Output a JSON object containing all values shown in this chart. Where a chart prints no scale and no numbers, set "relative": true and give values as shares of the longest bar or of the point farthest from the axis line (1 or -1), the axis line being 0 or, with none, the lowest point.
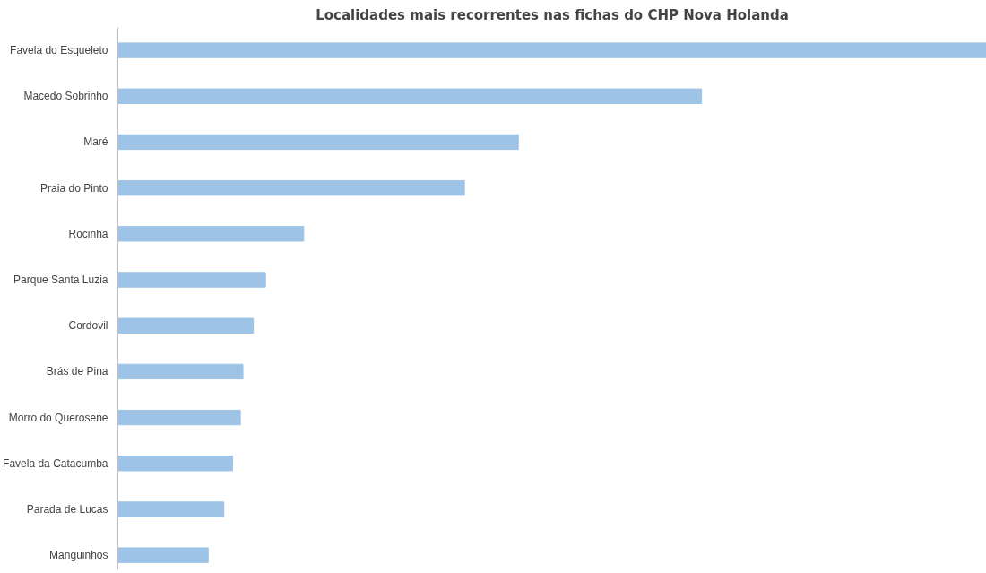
{
  "chart_data": {
    "type": "bar",
    "orientation": "horizontal",
    "relative": true,
    "title": "Localidades mais recorrentes nas fichas do CHP Nova Holanda",
    "categories": [
      "Favela do Esqueleto",
      "Macedo Sobrinho",
      "Maré",
      "Praia do Pinto",
      "Rocinha",
      "Parque Santa Luzia",
      "Cordovil",
      "Brás de Pina",
      "Morro do Querosene",
      "Favela da Catacumba",
      "Parada de Lucas",
      "Manguinhos"
    ],
    "values": [
      1,
      0.672,
      0.461,
      0.399,
      0.214,
      0.17,
      0.156,
      0.144,
      0.141,
      0.132,
      0.122,
      0.104
    ],
    "color": "#9dc3e6",
    "grid": false
  }
}
